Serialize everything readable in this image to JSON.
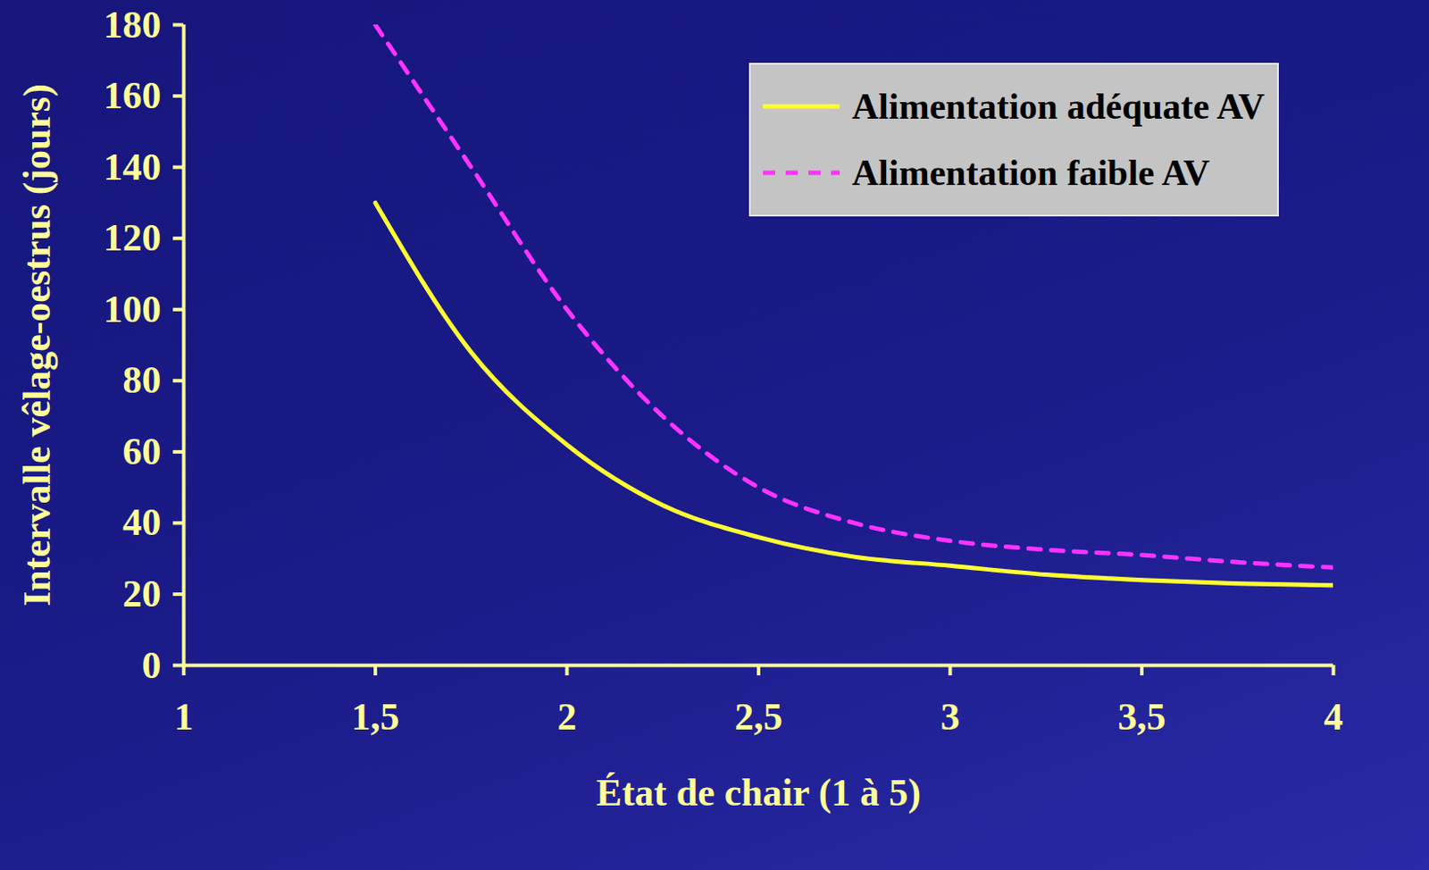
{
  "chart_data": {
    "type": "line",
    "x_label": "État de chair (1 à 5)",
    "y_label": "Intervalle vêlage-oestrus (jours)",
    "x": [
      1.5,
      1.75,
      2,
      2.25,
      2.5,
      2.75,
      3,
      3.25,
      3.5,
      3.75,
      4
    ],
    "series": [
      {
        "name": "Alimentation adéquate AV",
        "color": "#ffff33",
        "line_style": "solid",
        "values": [
          130,
          88,
          62,
          45,
          36,
          30.5,
          28,
          25.5,
          24,
          23,
          22.5
        ]
      },
      {
        "name": "Alimentation faible AV",
        "color": "#ff33ff",
        "line_style": "dashed",
        "values": [
          180,
          140,
          100,
          70,
          50,
          40,
          35,
          32.5,
          31,
          29,
          27.5
        ]
      }
    ],
    "xlim": [
      1,
      4
    ],
    "xticks": [
      1,
      {
        "value": 1.5,
        "label": "1,5"
      },
      2,
      {
        "value": 2.5,
        "label": "2,5"
      },
      3,
      {
        "value": 3.5,
        "label": "3,5"
      },
      4
    ],
    "ylim": [
      0,
      180
    ],
    "yticks": [
      0,
      20,
      40,
      60,
      80,
      100,
      120,
      140,
      160,
      180
    ],
    "grid": false,
    "legend": "top-right"
  }
}
